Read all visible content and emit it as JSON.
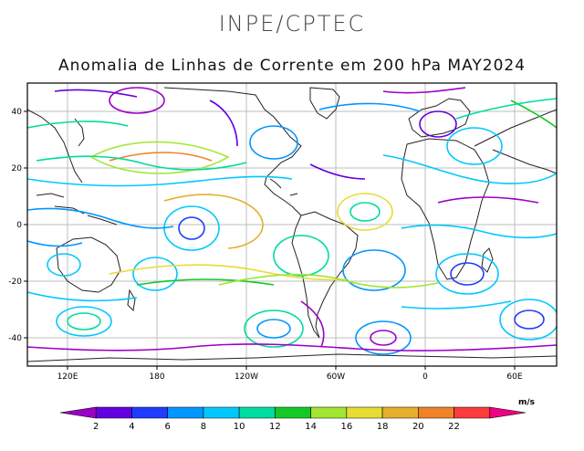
{
  "header": {
    "organization": "INPE/CPTEC",
    "title": "Anomalia de Linhas de Corrente em 200 hPa MAY2024"
  },
  "map": {
    "lat_ticks": [
      "40",
      "20",
      "0",
      "-20",
      "-40"
    ],
    "lon_ticks": [
      "120E",
      "180",
      "120W",
      "60W",
      "0",
      "60E"
    ]
  },
  "colorbar": {
    "unit": "m/s",
    "labels": [
      "2",
      "4",
      "6",
      "8",
      "10",
      "12",
      "14",
      "16",
      "18",
      "20",
      "22"
    ],
    "colors": [
      "#9b00c8",
      "#6400e0",
      "#1e3cff",
      "#0096ff",
      "#00c8ff",
      "#00dca0",
      "#14c828",
      "#a0e632",
      "#e6dc32",
      "#e6af2d",
      "#f08228",
      "#fa3c3c",
      "#f00082"
    ]
  }
}
